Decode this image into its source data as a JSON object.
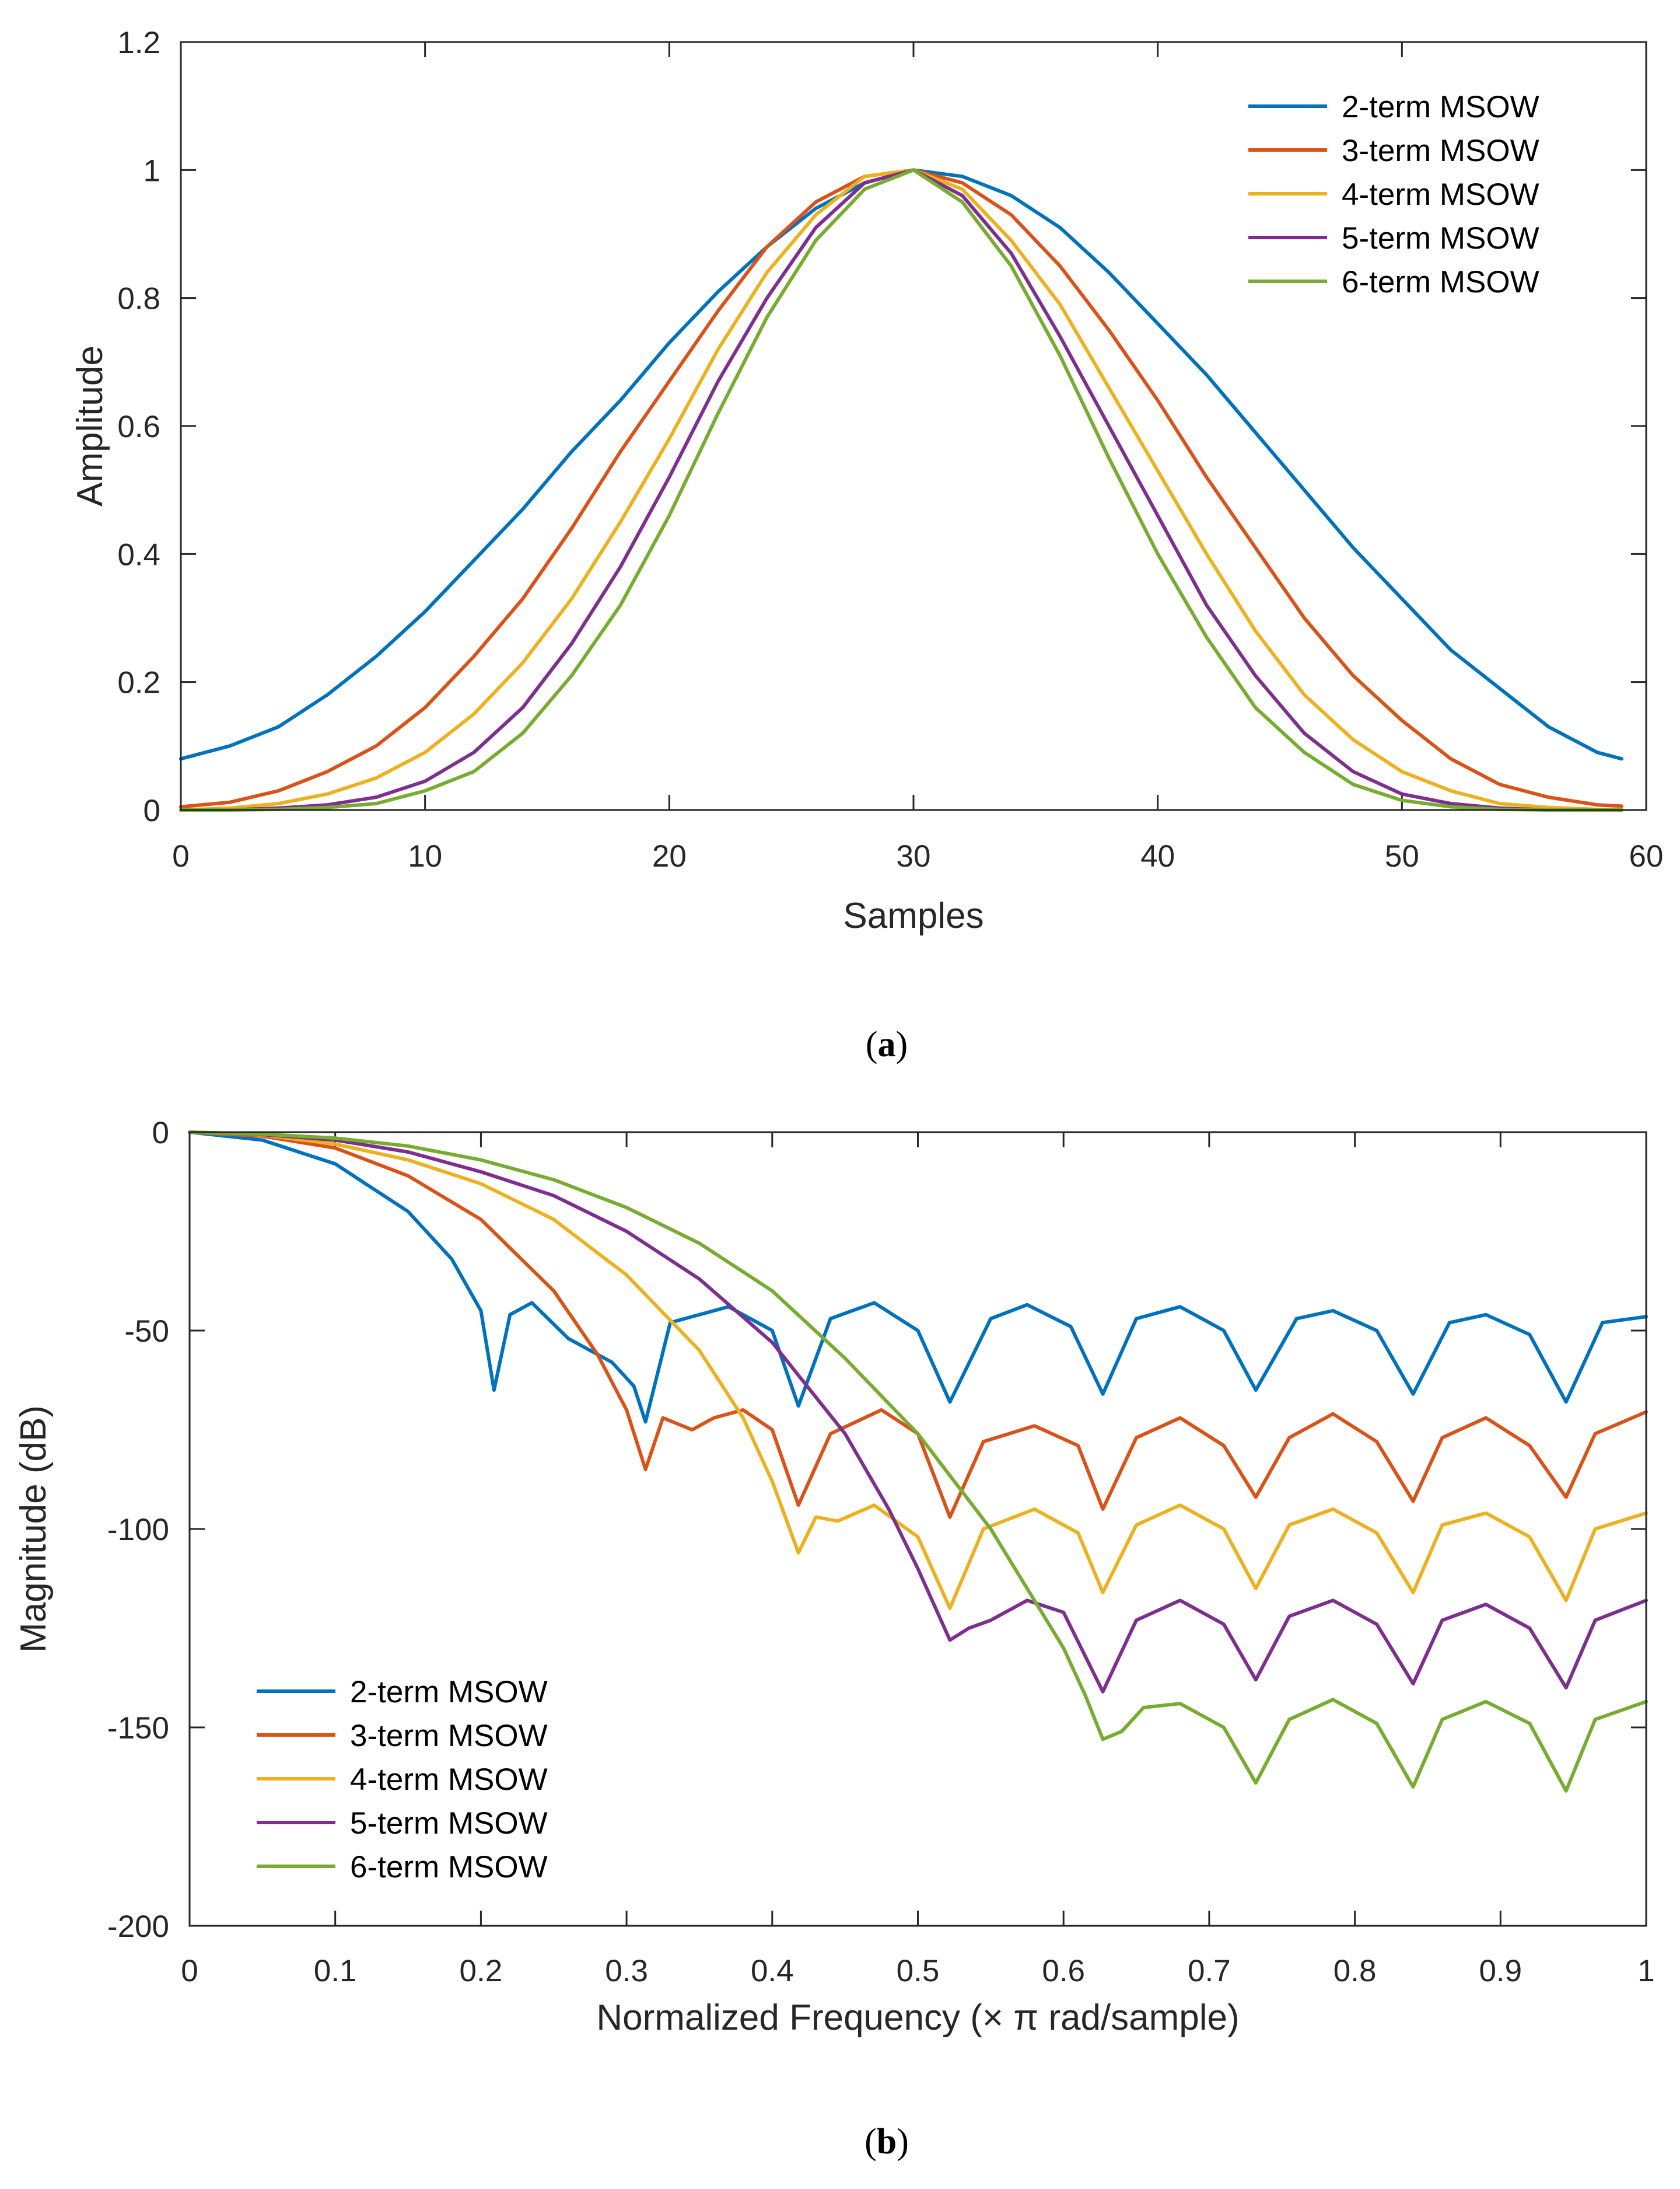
{
  "colors": {
    "series": [
      "#0072BD",
      "#D95319",
      "#EDB120",
      "#7E2F8E",
      "#77AC30"
    ],
    "axis": "#262626"
  },
  "chart_data": [
    {
      "type": "line",
      "id": "a",
      "caption_label": "a",
      "xlabel": "Samples",
      "ylabel": "Amplitude",
      "xlim": [
        0,
        60
      ],
      "ylim": [
        0,
        1.2
      ],
      "xticks": [
        0,
        10,
        20,
        30,
        40,
        50,
        60
      ],
      "xtick_labels": [
        "0",
        "10",
        "20",
        "30",
        "40",
        "50",
        "60"
      ],
      "yticks": [
        0,
        0.2,
        0.4,
        0.6,
        0.8,
        1,
        1.2
      ],
      "ytick_labels": [
        "0",
        "0.2",
        "0.4",
        "0.6",
        "0.8",
        "1",
        "1.2"
      ],
      "legend_position": "top-right",
      "x": [
        0,
        2,
        4,
        6,
        8,
        10,
        12,
        14,
        16,
        18,
        20,
        22,
        24,
        26,
        28,
        30,
        32,
        34,
        36,
        38,
        40,
        42,
        44,
        46,
        48,
        50,
        52,
        54,
        56,
        58,
        59
      ],
      "series": [
        {
          "name": "2-term MSOW",
          "values": [
            0.08,
            0.1,
            0.13,
            0.18,
            0.24,
            0.31,
            0.39,
            0.47,
            0.56,
            0.64,
            0.73,
            0.81,
            0.88,
            0.94,
            0.98,
            1.0,
            0.99,
            0.96,
            0.91,
            0.84,
            0.76,
            0.68,
            0.59,
            0.5,
            0.41,
            0.33,
            0.25,
            0.19,
            0.13,
            0.09,
            0.08
          ]
        },
        {
          "name": "3-term MSOW",
          "values": [
            0.005,
            0.012,
            0.03,
            0.06,
            0.1,
            0.16,
            0.24,
            0.33,
            0.44,
            0.56,
            0.67,
            0.78,
            0.88,
            0.95,
            0.99,
            1.0,
            0.98,
            0.93,
            0.85,
            0.75,
            0.64,
            0.52,
            0.41,
            0.3,
            0.21,
            0.14,
            0.08,
            0.04,
            0.02,
            0.008,
            0.006
          ]
        },
        {
          "name": "4-term MSOW",
          "values": [
            0.0,
            0.003,
            0.01,
            0.025,
            0.05,
            0.09,
            0.15,
            0.23,
            0.33,
            0.45,
            0.58,
            0.72,
            0.84,
            0.93,
            0.99,
            1.0,
            0.97,
            0.89,
            0.79,
            0.66,
            0.53,
            0.4,
            0.28,
            0.18,
            0.11,
            0.06,
            0.03,
            0.01,
            0.004,
            0.001,
            0.0
          ]
        },
        {
          "name": "5-term MSOW",
          "values": [
            0.0,
            0.0,
            0.003,
            0.008,
            0.02,
            0.045,
            0.09,
            0.16,
            0.26,
            0.38,
            0.52,
            0.67,
            0.8,
            0.91,
            0.98,
            1.0,
            0.96,
            0.87,
            0.74,
            0.6,
            0.46,
            0.32,
            0.21,
            0.12,
            0.06,
            0.025,
            0.01,
            0.003,
            0.0,
            0.0,
            0.0
          ]
        },
        {
          "name": "6-term MSOW",
          "values": [
            0.0,
            0.0,
            0.001,
            0.004,
            0.01,
            0.03,
            0.06,
            0.12,
            0.21,
            0.32,
            0.46,
            0.62,
            0.77,
            0.89,
            0.97,
            1.0,
            0.95,
            0.85,
            0.71,
            0.55,
            0.4,
            0.27,
            0.16,
            0.09,
            0.04,
            0.015,
            0.005,
            0.001,
            0.0,
            0.0,
            0.0
          ]
        }
      ]
    },
    {
      "type": "line",
      "id": "b",
      "caption_label": "b",
      "xlabel": "Normalized Frequency (× π rad/sample)",
      "ylabel": "Magnitude (dB)",
      "xlim": [
        0,
        1
      ],
      "ylim": [
        -200,
        0
      ],
      "xticks": [
        0,
        0.1,
        0.2,
        0.3,
        0.4,
        0.5,
        0.6,
        0.7,
        0.8,
        0.9,
        1
      ],
      "xtick_labels": [
        "0",
        "0.1",
        "0.2",
        "0.3",
        "0.4",
        "0.5",
        "0.6",
        "0.7",
        "0.8",
        "0.9",
        "1"
      ],
      "yticks": [
        -200,
        -150,
        -100,
        -50,
        0
      ],
      "ytick_labels": [
        "-200",
        "-150",
        "-100",
        "-50",
        "0"
      ],
      "legend_position": "bottom-left",
      "series": [
        {
          "name": "2-term MSOW",
          "x": [
            0,
            0.05,
            0.1,
            0.15,
            0.18,
            0.2,
            0.209,
            0.22,
            0.235,
            0.26,
            0.29,
            0.305,
            0.313,
            0.33,
            0.37,
            0.4,
            0.418,
            0.44,
            0.47,
            0.5,
            0.522,
            0.55,
            0.575,
            0.605,
            0.627,
            0.65,
            0.68,
            0.71,
            0.732,
            0.76,
            0.785,
            0.815,
            0.84,
            0.865,
            0.89,
            0.92,
            0.945,
            0.97,
            1.0
          ],
          "values": [
            0,
            -2,
            -8,
            -20,
            -32,
            -45,
            -65,
            -46,
            -43,
            -52,
            -58,
            -64,
            -73,
            -48,
            -44,
            -50,
            -69,
            -47,
            -43,
            -50,
            -68,
            -47,
            -43.5,
            -49,
            -66,
            -47,
            -44,
            -50,
            -65,
            -47,
            -45,
            -50,
            -66,
            -48,
            -46,
            -51,
            -68,
            -48,
            -46.5
          ]
        },
        {
          "name": "3-term MSOW",
          "x": [
            0,
            0.05,
            0.1,
            0.15,
            0.2,
            0.25,
            0.28,
            0.3,
            0.313,
            0.325,
            0.345,
            0.36,
            0.38,
            0.4,
            0.418,
            0.44,
            0.475,
            0.5,
            0.522,
            0.545,
            0.58,
            0.61,
            0.627,
            0.65,
            0.68,
            0.71,
            0.732,
            0.755,
            0.785,
            0.815,
            0.84,
            0.86,
            0.89,
            0.92,
            0.945,
            0.965,
            1.0
          ],
          "values": [
            0,
            -1,
            -4,
            -11,
            -22,
            -40,
            -56,
            -70,
            -85,
            -72,
            -75,
            -72,
            -70,
            -75,
            -94,
            -76,
            -70,
            -76,
            -97,
            -78,
            -74,
            -79,
            -95,
            -77,
            -72,
            -79,
            -92,
            -77,
            -71,
            -78,
            -93,
            -77,
            -72,
            -79,
            -92,
            -76,
            -70.5
          ]
        },
        {
          "name": "4-term MSOW",
          "x": [
            0,
            0.05,
            0.1,
            0.15,
            0.2,
            0.25,
            0.3,
            0.35,
            0.38,
            0.4,
            0.418,
            0.43,
            0.445,
            0.47,
            0.5,
            0.522,
            0.545,
            0.58,
            0.61,
            0.627,
            0.65,
            0.68,
            0.71,
            0.732,
            0.755,
            0.785,
            0.815,
            0.84,
            0.86,
            0.89,
            0.92,
            0.945,
            0.965,
            1.0
          ],
          "values": [
            0,
            -0.7,
            -3,
            -7,
            -13,
            -22,
            -36,
            -55,
            -72,
            -88,
            -106,
            -97,
            -98,
            -94,
            -102,
            -120,
            -100,
            -95,
            -101,
            -116,
            -99,
            -94,
            -100,
            -115,
            -99,
            -95,
            -101,
            -116,
            -99,
            -96,
            -102,
            -118,
            -100,
            -96
          ]
        },
        {
          "name": "5-term MSOW",
          "x": [
            0,
            0.05,
            0.1,
            0.15,
            0.2,
            0.25,
            0.3,
            0.35,
            0.4,
            0.45,
            0.48,
            0.5,
            0.522,
            0.535,
            0.55,
            0.575,
            0.6,
            0.627,
            0.65,
            0.68,
            0.71,
            0.732,
            0.755,
            0.785,
            0.815,
            0.84,
            0.86,
            0.89,
            0.92,
            0.945,
            0.965,
            1.0
          ],
          "values": [
            0,
            -0.6,
            -2,
            -5,
            -10,
            -16,
            -25,
            -37,
            -53,
            -76,
            -95,
            -110,
            -128,
            -125,
            -123,
            -118,
            -121,
            -141,
            -123,
            -118,
            -124,
            -138,
            -122,
            -118,
            -124,
            -139,
            -123,
            -119,
            -125,
            -140,
            -123,
            -118
          ]
        },
        {
          "name": "6-term MSOW",
          "x": [
            0,
            0.05,
            0.1,
            0.15,
            0.2,
            0.25,
            0.3,
            0.35,
            0.4,
            0.45,
            0.5,
            0.55,
            0.58,
            0.6,
            0.615,
            0.627,
            0.64,
            0.655,
            0.68,
            0.71,
            0.732,
            0.755,
            0.785,
            0.815,
            0.84,
            0.86,
            0.89,
            0.92,
            0.945,
            0.965,
            1.0
          ],
          "values": [
            0,
            -0.5,
            -1.5,
            -3.5,
            -7,
            -12,
            -19,
            -28,
            -40,
            -57,
            -76,
            -100,
            -118,
            -130,
            -142,
            -153,
            -151,
            -145,
            -144,
            -150,
            -164,
            -148,
            -143,
            -149,
            -165,
            -148,
            -143.5,
            -149,
            -166,
            -148,
            -143.5
          ]
        }
      ]
    }
  ]
}
